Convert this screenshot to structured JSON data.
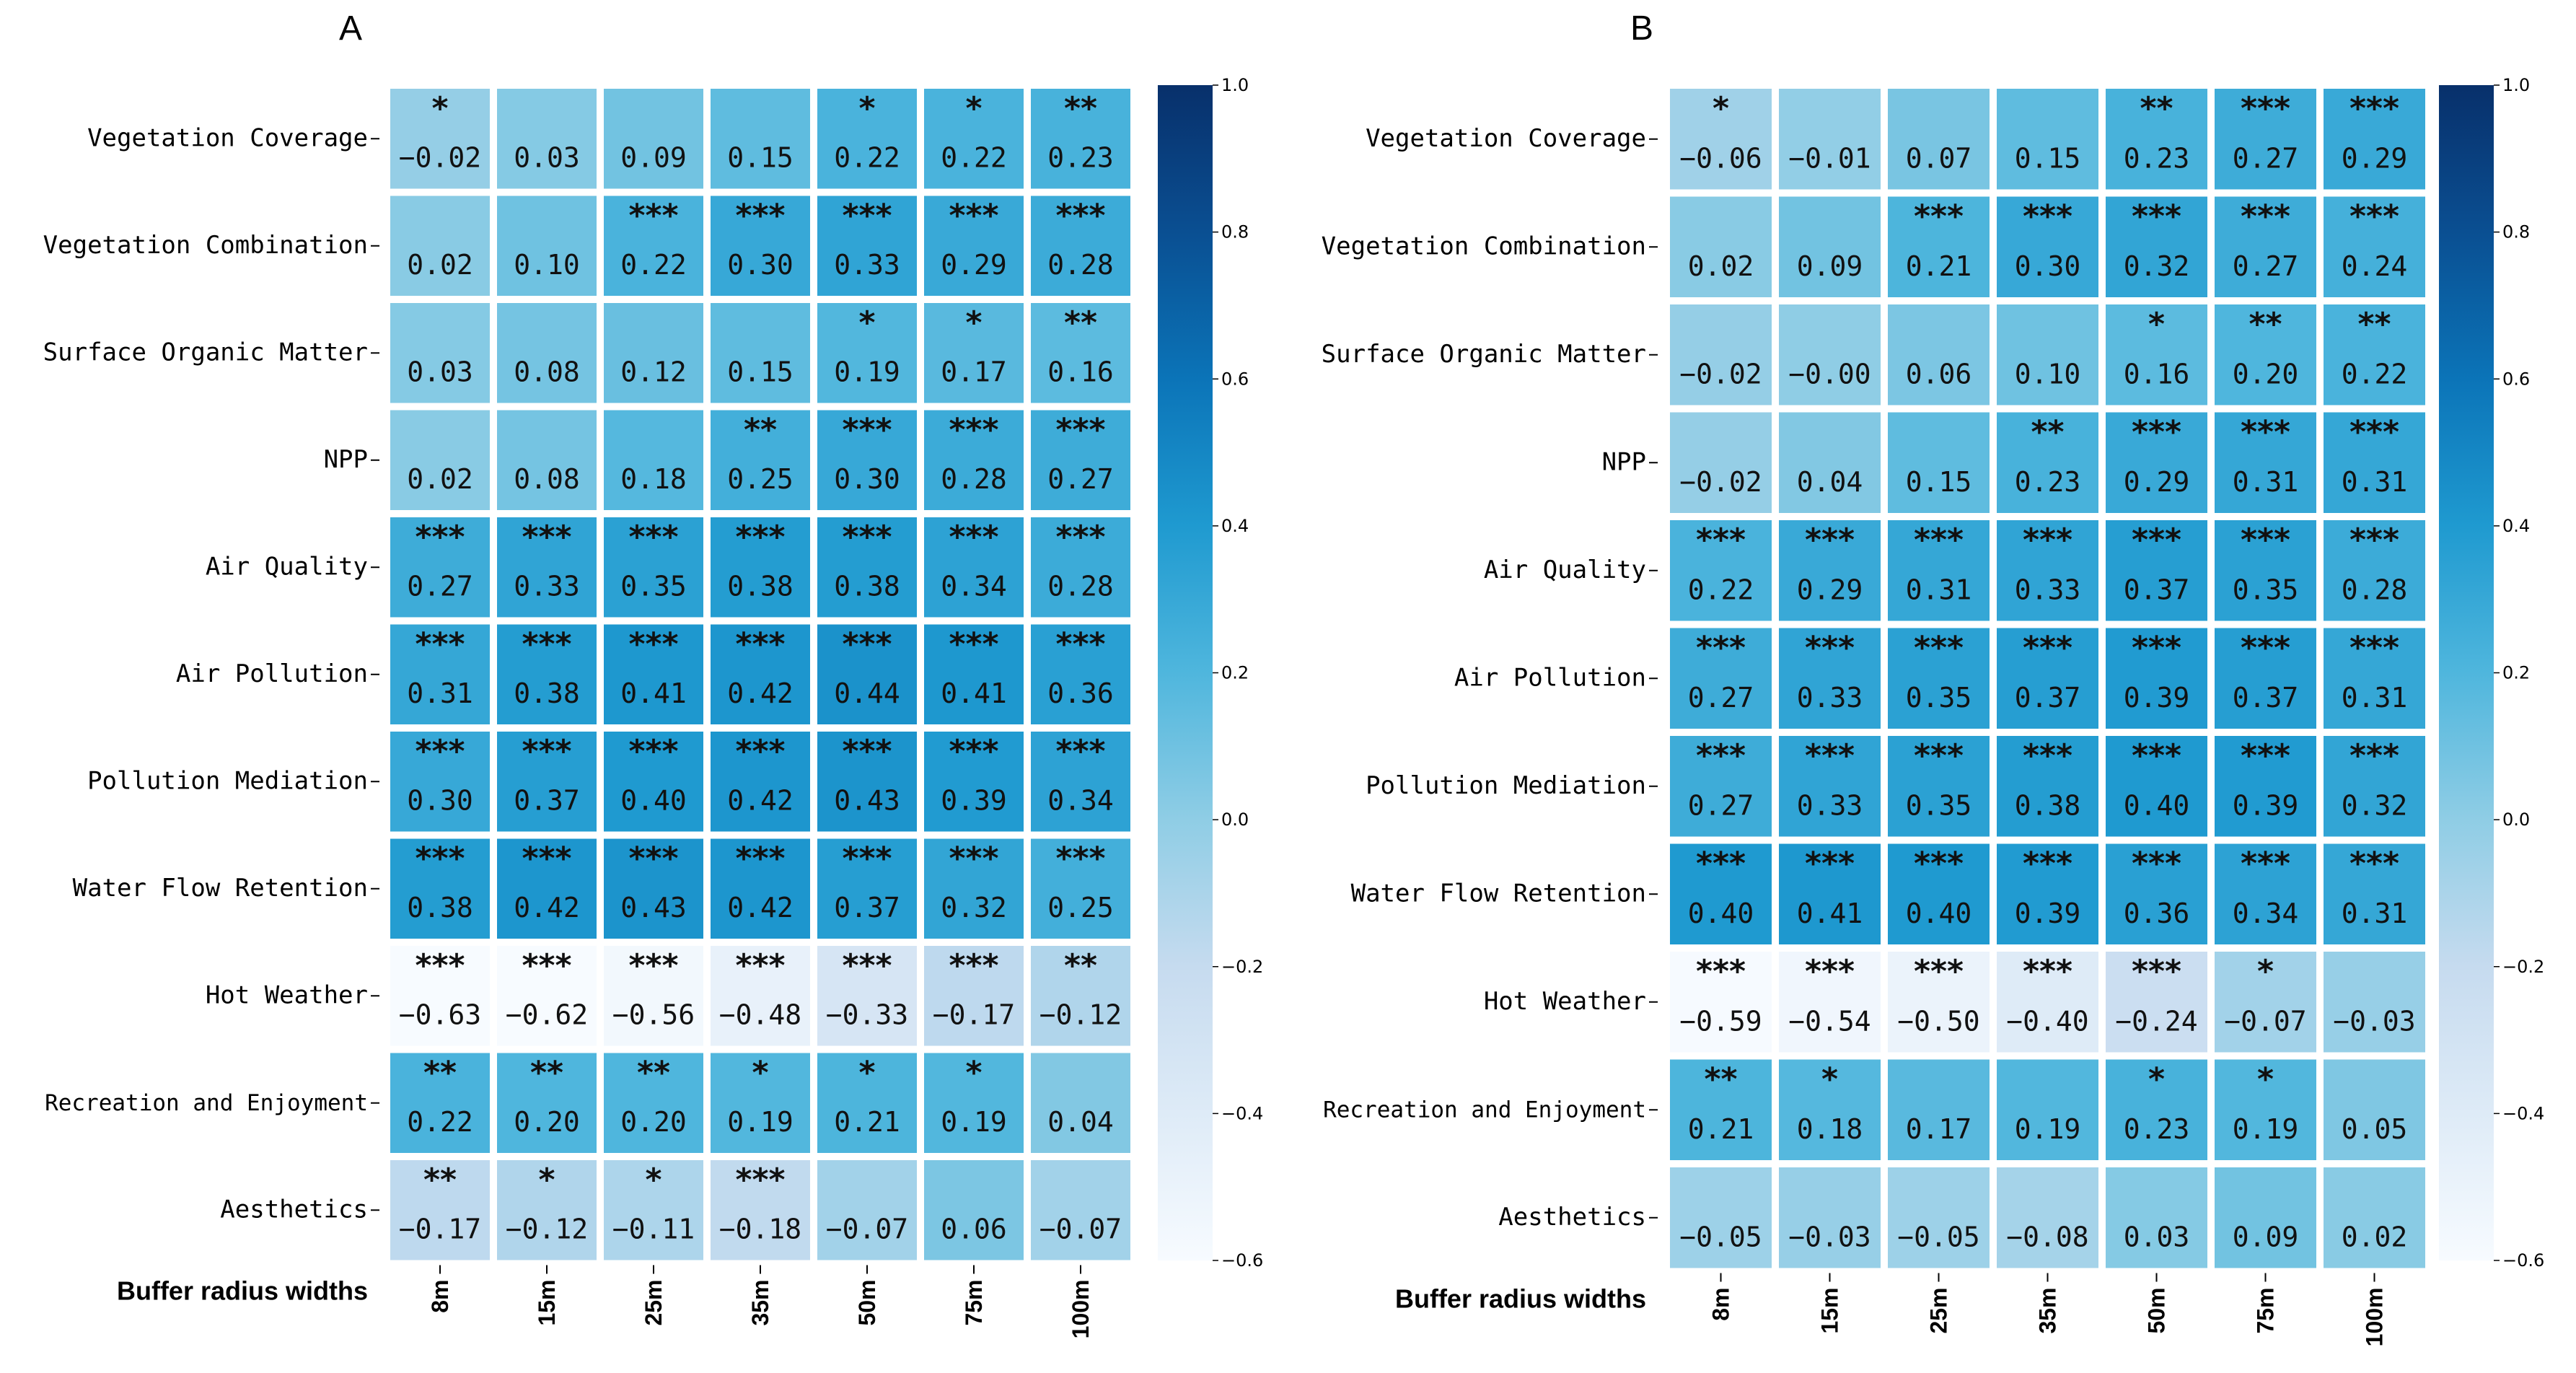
{
  "chart_data": [
    {
      "type": "heatmap",
      "panel": "A",
      "xlabel": "Buffer radius widths",
      "columns": [
        "8m",
        "15m",
        "25m",
        "35m",
        "50m",
        "75m",
        "100m"
      ],
      "rows": [
        "Vegetation Coverage",
        "Vegetation Combination",
        "Surface Organic Matter",
        "NPP",
        "Air Quality",
        "Air Pollution",
        "Pollution Mediation",
        "Water Flow Retention",
        "Hot Weather",
        "Recreation and Enjoyment",
        "Aesthetics"
      ],
      "values": [
        [
          -0.02,
          0.03,
          0.09,
          0.15,
          0.22,
          0.22,
          0.23
        ],
        [
          0.02,
          0.1,
          0.22,
          0.3,
          0.33,
          0.29,
          0.28
        ],
        [
          0.03,
          0.08,
          0.12,
          0.15,
          0.19,
          0.17,
          0.16
        ],
        [
          0.02,
          0.08,
          0.18,
          0.25,
          0.3,
          0.28,
          0.27
        ],
        [
          0.27,
          0.33,
          0.35,
          0.38,
          0.38,
          0.34,
          0.28
        ],
        [
          0.31,
          0.38,
          0.41,
          0.42,
          0.44,
          0.41,
          0.36
        ],
        [
          0.3,
          0.37,
          0.4,
          0.42,
          0.43,
          0.39,
          0.34
        ],
        [
          0.38,
          0.42,
          0.43,
          0.42,
          0.37,
          0.32,
          0.25
        ],
        [
          -0.63,
          -0.62,
          -0.56,
          -0.48,
          -0.33,
          -0.17,
          -0.12
        ],
        [
          0.22,
          0.2,
          0.2,
          0.19,
          0.21,
          0.19,
          0.04
        ],
        [
          -0.17,
          -0.12,
          -0.11,
          -0.18,
          -0.07,
          0.06,
          -0.07
        ]
      ],
      "labels": [
        [
          "−0.02",
          "0.03",
          "0.09",
          "0.15",
          "0.22",
          "0.22",
          "0.23"
        ],
        [
          "0.02",
          "0.10",
          "0.22",
          "0.30",
          "0.33",
          "0.29",
          "0.28"
        ],
        [
          "0.03",
          "0.08",
          "0.12",
          "0.15",
          "0.19",
          "0.17",
          "0.16"
        ],
        [
          "0.02",
          "0.08",
          "0.18",
          "0.25",
          "0.30",
          "0.28",
          "0.27"
        ],
        [
          "0.27",
          "0.33",
          "0.35",
          "0.38",
          "0.38",
          "0.34",
          "0.28"
        ],
        [
          "0.31",
          "0.38",
          "0.41",
          "0.42",
          "0.44",
          "0.41",
          "0.36"
        ],
        [
          "0.30",
          "0.37",
          "0.40",
          "0.42",
          "0.43",
          "0.39",
          "0.34"
        ],
        [
          "0.38",
          "0.42",
          "0.43",
          "0.42",
          "0.37",
          "0.32",
          "0.25"
        ],
        [
          "−0.63",
          "−0.62",
          "−0.56",
          "−0.48",
          "−0.33",
          "−0.17",
          "−0.12"
        ],
        [
          "0.22",
          "0.20",
          "0.20",
          "0.19",
          "0.21",
          "0.19",
          "0.04"
        ],
        [
          "−0.17",
          "−0.12",
          "−0.11",
          "−0.18",
          "−0.07",
          "0.06",
          "−0.07"
        ]
      ],
      "significance": [
        [
          "*",
          "",
          "",
          "",
          "*",
          "*",
          "**"
        ],
        [
          "",
          "",
          "***",
          "***",
          "***",
          "***",
          "***"
        ],
        [
          "",
          "",
          "",
          "",
          "*",
          "*",
          "**"
        ],
        [
          "",
          "",
          "",
          "**",
          "***",
          "***",
          "***"
        ],
        [
          "***",
          "***",
          "***",
          "***",
          "***",
          "***",
          "***"
        ],
        [
          "***",
          "***",
          "***",
          "***",
          "***",
          "***",
          "***"
        ],
        [
          "***",
          "***",
          "***",
          "***",
          "***",
          "***",
          "***"
        ],
        [
          "***",
          "***",
          "***",
          "***",
          "***",
          "***",
          "***"
        ],
        [
          "***",
          "***",
          "***",
          "***",
          "***",
          "***",
          "**"
        ],
        [
          "**",
          "**",
          "**",
          "*",
          "*",
          "*",
          ""
        ],
        [
          "**",
          "*",
          "*",
          "***",
          "",
          "",
          ""
        ]
      ],
      "colorbar": {
        "range": [
          -0.6,
          1.0
        ],
        "ticks": [
          1.0,
          0.8,
          0.6,
          0.4,
          0.2,
          0.0,
          -0.2,
          -0.4,
          -0.6
        ],
        "tick_labels": [
          "1.0",
          "0.8",
          "0.6",
          "0.4",
          "0.2",
          "0.0",
          "−0.2",
          "−0.4",
          "−0.6"
        ],
        "colormap": "Blues"
      }
    },
    {
      "type": "heatmap",
      "panel": "B",
      "xlabel": "Buffer radius widths",
      "columns": [
        "8m",
        "15m",
        "25m",
        "35m",
        "50m",
        "75m",
        "100m"
      ],
      "rows": [
        "Vegetation Coverage",
        "Vegetation Combination",
        "Surface Organic Matter",
        "NPP",
        "Air Quality",
        "Air Pollution",
        "Pollution Mediation",
        "Water Flow Retention",
        "Hot Weather",
        "Recreation and Enjoyment",
        "Aesthetics"
      ],
      "values": [
        [
          -0.06,
          -0.01,
          0.07,
          0.15,
          0.23,
          0.27,
          0.29
        ],
        [
          0.02,
          0.09,
          0.21,
          0.3,
          0.32,
          0.27,
          0.24
        ],
        [
          -0.02,
          0.0,
          0.06,
          0.1,
          0.16,
          0.2,
          0.22
        ],
        [
          -0.02,
          0.04,
          0.15,
          0.23,
          0.29,
          0.31,
          0.31
        ],
        [
          0.22,
          0.29,
          0.31,
          0.33,
          0.37,
          0.35,
          0.28
        ],
        [
          0.27,
          0.33,
          0.35,
          0.37,
          0.39,
          0.37,
          0.31
        ],
        [
          0.27,
          0.33,
          0.35,
          0.38,
          0.4,
          0.39,
          0.32
        ],
        [
          0.4,
          0.41,
          0.4,
          0.39,
          0.36,
          0.34,
          0.31
        ],
        [
          -0.59,
          -0.54,
          -0.5,
          -0.4,
          -0.24,
          -0.07,
          -0.03
        ],
        [
          0.21,
          0.18,
          0.17,
          0.19,
          0.23,
          0.19,
          0.05
        ],
        [
          -0.05,
          -0.03,
          -0.05,
          -0.08,
          0.03,
          0.09,
          0.02
        ]
      ],
      "labels": [
        [
          "−0.06",
          "−0.01",
          "0.07",
          "0.15",
          "0.23",
          "0.27",
          "0.29"
        ],
        [
          "0.02",
          "0.09",
          "0.21",
          "0.30",
          "0.32",
          "0.27",
          "0.24"
        ],
        [
          "−0.02",
          "−0.00",
          "0.06",
          "0.10",
          "0.16",
          "0.20",
          "0.22"
        ],
        [
          "−0.02",
          "0.04",
          "0.15",
          "0.23",
          "0.29",
          "0.31",
          "0.31"
        ],
        [
          "0.22",
          "0.29",
          "0.31",
          "0.33",
          "0.37",
          "0.35",
          "0.28"
        ],
        [
          "0.27",
          "0.33",
          "0.35",
          "0.37",
          "0.39",
          "0.37",
          "0.31"
        ],
        [
          "0.27",
          "0.33",
          "0.35",
          "0.38",
          "0.40",
          "0.39",
          "0.32"
        ],
        [
          "0.40",
          "0.41",
          "0.40",
          "0.39",
          "0.36",
          "0.34",
          "0.31"
        ],
        [
          "−0.59",
          "−0.54",
          "−0.50",
          "−0.40",
          "−0.24",
          "−0.07",
          "−0.03"
        ],
        [
          "0.21",
          "0.18",
          "0.17",
          "0.19",
          "0.23",
          "0.19",
          "0.05"
        ],
        [
          "−0.05",
          "−0.03",
          "−0.05",
          "−0.08",
          "0.03",
          "0.09",
          "0.02"
        ]
      ],
      "significance": [
        [
          "*",
          "",
          "",
          "",
          "**",
          "***",
          "***"
        ],
        [
          "",
          "",
          "***",
          "***",
          "***",
          "***",
          "***"
        ],
        [
          "",
          "",
          "",
          "",
          "*",
          "**",
          "**"
        ],
        [
          "",
          "",
          "",
          "**",
          "***",
          "***",
          "***"
        ],
        [
          "***",
          "***",
          "***",
          "***",
          "***",
          "***",
          "***"
        ],
        [
          "***",
          "***",
          "***",
          "***",
          "***",
          "***",
          "***"
        ],
        [
          "***",
          "***",
          "***",
          "***",
          "***",
          "***",
          "***"
        ],
        [
          "***",
          "***",
          "***",
          "***",
          "***",
          "***",
          "***"
        ],
        [
          "***",
          "***",
          "***",
          "***",
          "***",
          "*",
          ""
        ],
        [
          "**",
          "*",
          "",
          "",
          "*",
          "*",
          ""
        ],
        [
          "",
          "",
          "",
          "",
          "",
          "",
          ""
        ]
      ],
      "colorbar": {
        "range": [
          -0.6,
          1.0
        ],
        "ticks": [
          1.0,
          0.8,
          0.6,
          0.4,
          0.2,
          0.0,
          -0.2,
          -0.4,
          -0.6
        ],
        "tick_labels": [
          "1.0",
          "0.8",
          "0.6",
          "0.4",
          "0.2",
          "0.0",
          "−0.2",
          "−0.4",
          "−0.6"
        ],
        "colormap": "Blues"
      }
    }
  ]
}
